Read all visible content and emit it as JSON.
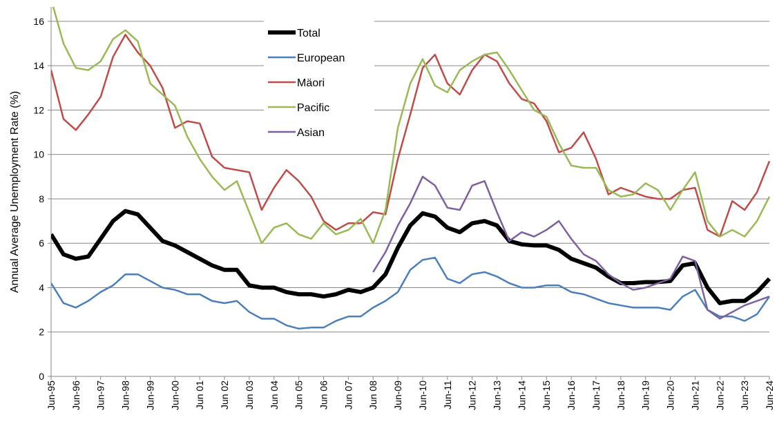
{
  "chart_data": {
    "type": "line",
    "y_label": "Annual Average Unemployment Rate  (%)",
    "categories": [
      "Jun-95",
      null,
      "Jun-96",
      null,
      "Jun-97",
      null,
      "Jun-98",
      null,
      "Jun-99",
      null,
      "Jun-00",
      null,
      "Jun 01",
      null,
      "Jun 02",
      null,
      "Jun 03",
      null,
      "Jun 04",
      null,
      "Jun 05",
      null,
      "Jun 06",
      null,
      "Jun 07",
      null,
      "Jun 08",
      null,
      "Jun-09",
      null,
      "Jun-10",
      null,
      "Jun-11",
      null,
      "Jun-12",
      null,
      "Jun-13",
      null,
      "Jun-14",
      null,
      "Jun-15",
      null,
      "Jun-16",
      null,
      "Jun-17",
      null,
      "Jun-18",
      null,
      "Jun-19",
      null,
      "Jun-20",
      null,
      "Jun-21",
      null,
      "Jun-22",
      null,
      "Jun-23",
      null,
      "Jun-24"
    ],
    "series": [
      {
        "name": "Total",
        "color": "#000000",
        "width": 6,
        "values": [
          6.4,
          5.5,
          5.3,
          5.4,
          6.2,
          7.0,
          7.45,
          7.3,
          6.7,
          6.1,
          5.9,
          5.6,
          5.3,
          5.0,
          4.8,
          4.8,
          4.1,
          4.0,
          4.0,
          3.8,
          3.7,
          3.7,
          3.6,
          3.7,
          3.9,
          3.8,
          4.0,
          4.6,
          5.8,
          6.8,
          7.35,
          7.2,
          6.7,
          6.5,
          6.9,
          7.0,
          6.8,
          6.1,
          5.95,
          5.9,
          5.9,
          5.7,
          5.3,
          5.1,
          4.9,
          4.5,
          4.2,
          4.2,
          4.25,
          4.25,
          4.3,
          5.0,
          5.1,
          4.0,
          3.3,
          3.4,
          3.4,
          3.8,
          4.4
        ]
      },
      {
        "name": "European",
        "color": "#4a7ebb",
        "width": 2.5,
        "values": [
          4.2,
          3.3,
          3.1,
          3.4,
          3.8,
          4.1,
          4.6,
          4.6,
          4.3,
          4.0,
          3.9,
          3.7,
          3.7,
          3.4,
          3.3,
          3.4,
          2.9,
          2.6,
          2.6,
          2.3,
          2.15,
          2.2,
          2.2,
          2.5,
          2.7,
          2.7,
          3.1,
          3.4,
          3.8,
          4.8,
          5.25,
          5.35,
          4.4,
          4.2,
          4.6,
          4.7,
          4.5,
          4.2,
          4.0,
          4.0,
          4.1,
          4.1,
          3.8,
          3.7,
          3.5,
          3.3,
          3.2,
          3.1,
          3.1,
          3.1,
          3.0,
          3.6,
          3.9,
          3.0,
          2.7,
          2.7,
          2.5,
          2.8,
          3.6
        ]
      },
      {
        "name": "Mäori",
        "color": "#be4b48",
        "width": 2.5,
        "values": [
          13.8,
          11.6,
          11.1,
          11.8,
          12.6,
          14.4,
          15.4,
          14.6,
          14.0,
          13.0,
          11.2,
          11.5,
          11.4,
          9.9,
          9.4,
          9.3,
          9.2,
          7.5,
          8.5,
          9.3,
          8.8,
          8.1,
          7.0,
          6.6,
          6.9,
          6.9,
          7.4,
          7.3,
          9.8,
          11.8,
          13.9,
          14.5,
          13.2,
          12.7,
          13.8,
          14.5,
          14.2,
          13.2,
          12.5,
          12.3,
          11.5,
          10.1,
          10.3,
          11.0,
          9.8,
          8.2,
          8.5,
          8.3,
          8.1,
          8.0,
          8.0,
          8.4,
          8.5,
          6.6,
          6.3,
          7.9,
          7.5,
          8.3,
          9.7
        ]
      },
      {
        "name": "Pacific",
        "color": "#98b954",
        "width": 2.5,
        "values": [
          17.0,
          15.0,
          13.9,
          13.8,
          14.2,
          15.2,
          15.6,
          15.1,
          13.2,
          12.7,
          12.2,
          10.8,
          9.8,
          9.0,
          8.4,
          8.8,
          7.4,
          6.0,
          6.7,
          6.9,
          6.4,
          6.2,
          6.9,
          6.4,
          6.6,
          7.1,
          6.0,
          7.5,
          11.2,
          13.2,
          14.3,
          13.1,
          12.8,
          13.8,
          14.2,
          14.5,
          14.6,
          13.8,
          12.9,
          12.0,
          11.7,
          10.5,
          9.5,
          9.4,
          9.4,
          8.4,
          8.1,
          8.2,
          8.7,
          8.4,
          7.5,
          8.4,
          9.2,
          7.0,
          6.3,
          6.6,
          6.3,
          7.0,
          8.1
        ]
      },
      {
        "name": "Asian",
        "color": "#7d5fa0",
        "width": 2.5,
        "values": [
          null,
          null,
          null,
          null,
          null,
          null,
          null,
          null,
          null,
          null,
          null,
          null,
          null,
          null,
          null,
          null,
          null,
          null,
          null,
          null,
          null,
          null,
          null,
          null,
          null,
          null,
          4.7,
          5.6,
          6.8,
          7.8,
          9.0,
          8.6,
          7.6,
          7.5,
          8.6,
          8.8,
          7.4,
          6.1,
          6.5,
          6.3,
          6.6,
          7.0,
          6.2,
          5.5,
          5.2,
          4.6,
          4.2,
          3.9,
          4.0,
          4.2,
          4.4,
          5.4,
          5.2,
          3.0,
          2.6,
          2.9,
          3.2,
          3.4,
          3.6
        ]
      }
    ],
    "ylim": [
      0,
      16.65
    ],
    "yticks": [
      0,
      2,
      4,
      6,
      8,
      10,
      12,
      14,
      16
    ],
    "grid": true,
    "legend": "top"
  }
}
